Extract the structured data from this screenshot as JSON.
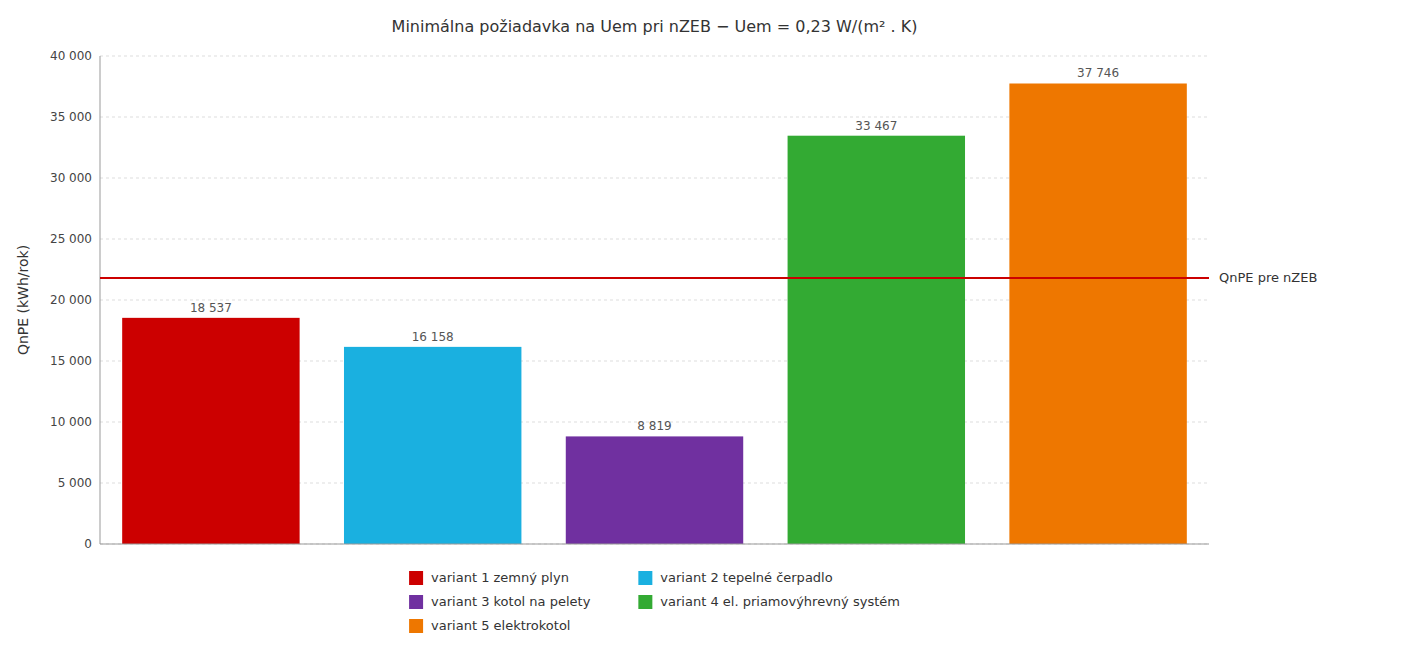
{
  "chart_data": {
    "type": "bar",
    "title": "Minimálna požiadavka na Uem pri nZEB − Uem = 0,23 W/(m² . K)",
    "y_label": "QnPE (kWh/rok)",
    "categories": [
      "variant 1 zemný plyn",
      "variant 2 tepelné čerpadlo",
      "variant 3 kotol na pelety",
      "variant 4 el. priamovýhrevný systém",
      "variant 5 elektrokotol"
    ],
    "values": [
      18537,
      16158,
      8819,
      33467,
      37746
    ],
    "value_labels": [
      "18 537",
      "16 158",
      "8 819",
      "33 467",
      "37 746"
    ],
    "colors": [
      "#cc0000",
      "#1ab0e0",
      "#7030a0",
      "#33aa33",
      "#ee7700"
    ],
    "data_labels": true,
    "ylim": [
      0,
      40000
    ],
    "yticks": [
      0,
      {
        "value": 5000,
        "label": "5 000"
      },
      {
        "value": 10000,
        "label": "10 000"
      },
      {
        "value": 15000,
        "label": "15 000"
      },
      {
        "value": 20000,
        "label": "20 000"
      },
      {
        "value": 25000,
        "label": "25 000"
      },
      {
        "value": 30000,
        "label": "30 000"
      },
      {
        "value": 35000,
        "label": "35 000"
      },
      {
        "value": 40000,
        "label": "40 000"
      }
    ],
    "grid": true,
    "tick_labels": "y",
    "legend": "bottom",
    "annotations": [
      {
        "label": "QnPE pre nZEB",
        "y": 21800,
        "color": "#cc0000"
      }
    ]
  }
}
